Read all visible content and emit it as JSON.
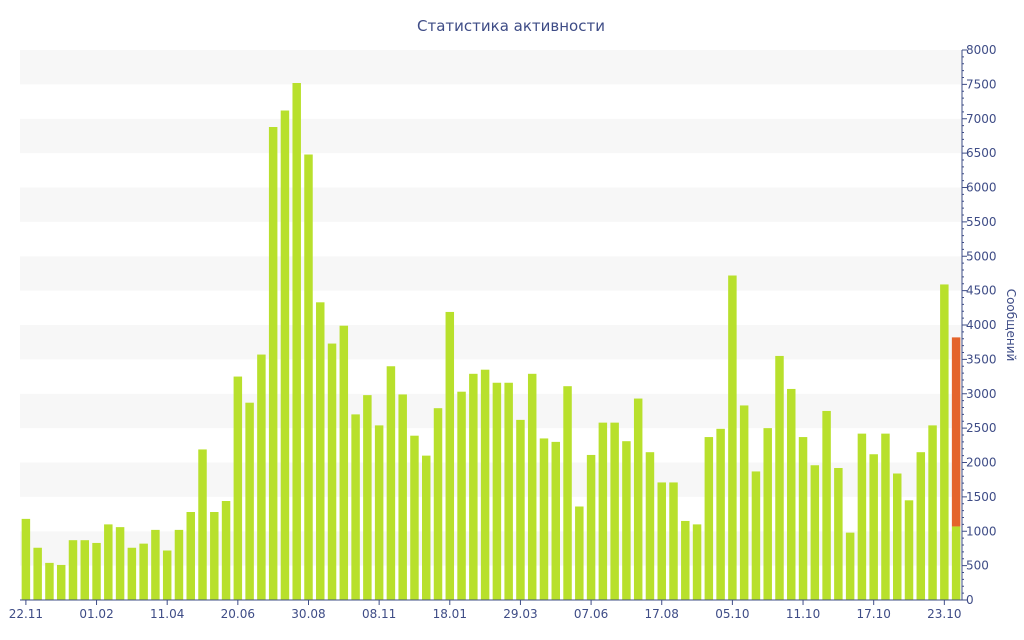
{
  "chart_data": {
    "type": "bar",
    "title": "Статистика активности",
    "ylabel": "Сообщений",
    "ylim": [
      0,
      8000
    ],
    "y_ticks": [
      0,
      500,
      1000,
      1500,
      2000,
      2500,
      3000,
      3500,
      4000,
      4500,
      5000,
      5500,
      6000,
      6500,
      7000,
      7500,
      8000
    ],
    "x_tick_labels": [
      "22.11",
      "01.02",
      "11.04",
      "20.06",
      "30.08",
      "08.11",
      "18.01",
      "29.03",
      "07.06",
      "17.08",
      "05.10",
      "11.10",
      "17.10",
      "23.10"
    ],
    "x_tick_indices": [
      0,
      6,
      12,
      18,
      24,
      30,
      36,
      42,
      48,
      54,
      60,
      66,
      72,
      78
    ],
    "grid": true,
    "legend": "none",
    "colors": {
      "bar": "#b8e02c",
      "highlight": "#e4642c",
      "band": "#f7f7f7",
      "axis": "#3e4c86"
    },
    "series": [
      {
        "values": [
          1180,
          760,
          540,
          510,
          870,
          870,
          830,
          1100,
          1060,
          760,
          820,
          1020,
          720,
          1020,
          1280,
          2190,
          1280,
          1440,
          3250,
          2870,
          3570,
          6880,
          7120,
          7520,
          6480,
          4330,
          3730,
          3990,
          2700,
          2980,
          2540,
          3400,
          2990,
          2390,
          2100,
          2790,
          4190,
          3030,
          3290,
          3350,
          3160,
          3160,
          2620,
          3290,
          2350,
          2300,
          3110,
          1360,
          2110,
          2580,
          2580,
          2310,
          2930,
          2150,
          1710,
          1710,
          1150,
          1100,
          2370,
          2490,
          4720,
          2830,
          1870,
          2500,
          3550,
          3070,
          2370,
          1960,
          2750,
          1920,
          980,
          2420,
          2120,
          2420,
          1840,
          1450,
          2150,
          2540,
          4590,
          1070
        ]
      },
      {
        "name": "",
        "stacked_index": 79,
        "values": [
          2750
        ]
      }
    ]
  }
}
